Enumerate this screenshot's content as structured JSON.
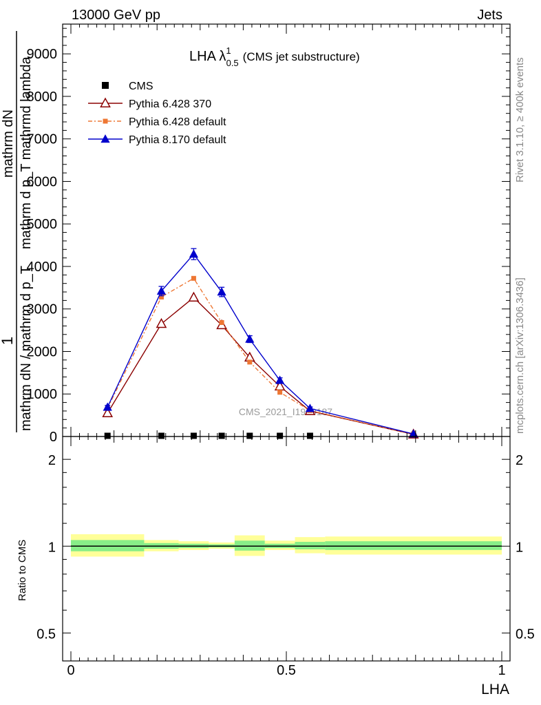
{
  "header": {
    "left": "13000 GeV pp",
    "right": "Jets"
  },
  "side_labels": {
    "rivet": "Rivet 3.1.10, ≥ 400k events",
    "mcplots": "mcplots.cern.ch [arXiv:1306.3436]"
  },
  "chart_data": [
    {
      "type": "line",
      "title": "LHA λ",
      "title_sup": "1",
      "title_sub": "0.5",
      "title_note": "(CMS jet substructure)",
      "watermark": "CMS_2021_I1920187",
      "ylabel_lines": [
        "1",
        "mathrm dN / mathrm d p_T",
        "mathrm dN",
        "mathrm d p_T mathrmd lambda"
      ],
      "xlim": [
        0,
        1
      ],
      "ylim": [
        0,
        9700
      ],
      "yticks": [
        0,
        1000,
        2000,
        3000,
        4000,
        5000,
        6000,
        7000,
        8000,
        9000
      ],
      "ytick_labels": [
        "0",
        "1000",
        "2000",
        "3000",
        "4000",
        "5000",
        "6000",
        "7000",
        "8000",
        "9000"
      ],
      "legend_position": "top-left",
      "series": [
        {
          "name": "CMS",
          "color": "#000000",
          "marker": "square",
          "x": [
            0.085,
            0.21,
            0.285,
            0.35,
            0.415,
            0.485,
            0.555
          ],
          "y": [
            0,
            0,
            0,
            0,
            0,
            0,
            0
          ]
        },
        {
          "name": "Pythia 6.428 370",
          "color": "#8b0000",
          "marker": "open-triangle",
          "x": [
            0.085,
            0.21,
            0.285,
            0.35,
            0.415,
            0.485,
            0.555,
            0.795
          ],
          "y": [
            550,
            2650,
            3270,
            2620,
            1860,
            1180,
            600,
            50
          ]
        },
        {
          "name": "Pythia 6.428 default",
          "color": "#ee7733",
          "marker": "square",
          "x": [
            0.085,
            0.21,
            0.285,
            0.35,
            0.415,
            0.485,
            0.555,
            0.795
          ],
          "y": [
            660,
            3280,
            3720,
            2680,
            1750,
            1040,
            610,
            55
          ]
        },
        {
          "name": "Pythia 8.170 default",
          "color": "#0000cc",
          "marker": "triangle",
          "x": [
            0.085,
            0.21,
            0.285,
            0.35,
            0.415,
            0.485,
            0.555,
            0.795
          ],
          "y": [
            690,
            3420,
            4290,
            3400,
            2290,
            1320,
            660,
            60
          ],
          "errors": [
            40,
            110,
            130,
            110,
            80,
            60,
            35,
            10
          ]
        }
      ]
    },
    {
      "type": "area",
      "ylabel": "Ratio to CMS",
      "xlabel": "LHA",
      "xlim": [
        0,
        1
      ],
      "ylim": [
        0.4,
        2.4
      ],
      "log_scale_y": true,
      "xticks": [
        0,
        0.5,
        1
      ],
      "xtick_labels": [
        "0",
        "0.5",
        "1"
      ],
      "yticks": [
        0.5,
        1,
        2
      ],
      "ytick_labels": [
        "0.5",
        "1",
        "2"
      ],
      "reference_line": 1,
      "bands": [
        {
          "x0": 0.0,
          "x1": 0.17,
          "outer": [
            0.92,
            1.1
          ],
          "inner": [
            0.96,
            1.05
          ]
        },
        {
          "x0": 0.17,
          "x1": 0.25,
          "outer": [
            0.96,
            1.05
          ],
          "inner": [
            0.98,
            1.025
          ]
        },
        {
          "x0": 0.25,
          "x1": 0.32,
          "outer": [
            0.97,
            1.04
          ],
          "inner": [
            0.985,
            1.02
          ]
        },
        {
          "x0": 0.32,
          "x1": 0.38,
          "outer": [
            0.98,
            1.03
          ],
          "inner": [
            0.99,
            1.015
          ]
        },
        {
          "x0": 0.38,
          "x1": 0.45,
          "outer": [
            0.925,
            1.09
          ],
          "inner": [
            0.965,
            1.045
          ]
        },
        {
          "x0": 0.45,
          "x1": 0.52,
          "outer": [
            0.97,
            1.045
          ],
          "inner": [
            0.985,
            1.02
          ]
        },
        {
          "x0": 0.52,
          "x1": 0.59,
          "outer": [
            0.945,
            1.075
          ],
          "inner": [
            0.975,
            1.035
          ]
        },
        {
          "x0": 0.59,
          "x1": 1.0,
          "outer": [
            0.935,
            1.08
          ],
          "inner": [
            0.97,
            1.04
          ]
        }
      ]
    }
  ]
}
